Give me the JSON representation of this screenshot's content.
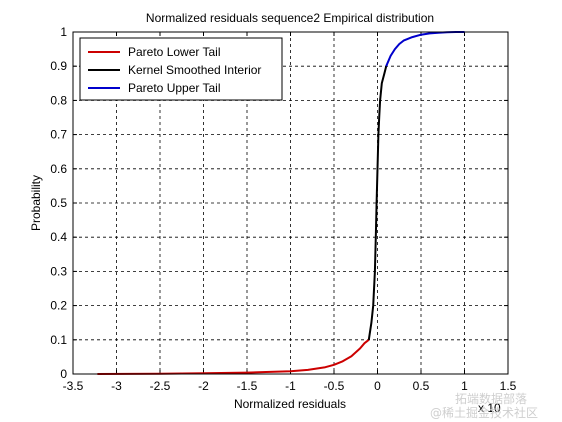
{
  "chart_data": {
    "type": "line",
    "title": "Normalized residuals sequence2 Empirical distribution",
    "xlabel": "Normalized residuals",
    "ylabel": "Probability",
    "xlim": [
      -3.5,
      1.5
    ],
    "ylim": [
      0,
      1
    ],
    "x_ticks": [
      "-3.5",
      "-3",
      "-2.5",
      "-2",
      "-1.5",
      "-1",
      "-0.5",
      "0",
      "0.5",
      "1",
      "1.5"
    ],
    "y_ticks": [
      "0",
      "0.1",
      "0.2",
      "0.3",
      "0.4",
      "0.5",
      "0.6",
      "0.7",
      "0.8",
      "0.9",
      "1"
    ],
    "x_exponent_label": "x 10",
    "grid": true,
    "legend_position": "top-left",
    "series": [
      {
        "name": "Pareto Lower Tail",
        "color": "#cc0000",
        "x": [
          -3.22,
          -2.5,
          -2.0,
          -1.5,
          -1.0,
          -0.8,
          -0.6,
          -0.5,
          -0.4,
          -0.3,
          -0.2,
          -0.15,
          -0.1
        ],
        "y": [
          0.0,
          0.001,
          0.002,
          0.004,
          0.008,
          0.012,
          0.02,
          0.027,
          0.037,
          0.052,
          0.075,
          0.09,
          0.1
        ]
      },
      {
        "name": "Kernel Smoothed Interior",
        "color": "#000000",
        "x": [
          -0.1,
          -0.07,
          -0.05,
          -0.03,
          -0.02,
          -0.01,
          0.0,
          0.01,
          0.02,
          0.03,
          0.05,
          0.08,
          0.1
        ],
        "y": [
          0.1,
          0.15,
          0.2,
          0.3,
          0.4,
          0.5,
          0.6,
          0.7,
          0.75,
          0.8,
          0.85,
          0.88,
          0.9
        ]
      },
      {
        "name": "Pareto Upper Tail",
        "color": "#0000cc",
        "x": [
          0.1,
          0.15,
          0.2,
          0.25,
          0.3,
          0.4,
          0.5,
          0.6,
          0.7,
          0.8,
          0.9,
          1.0
        ],
        "y": [
          0.9,
          0.93,
          0.95,
          0.965,
          0.975,
          0.985,
          0.992,
          0.996,
          0.998,
          0.999,
          1.0,
          1.0
        ]
      }
    ]
  },
  "watermark": {
    "line1": "@稀土掘金技术社区",
    "line2": "拓端数据部落"
  }
}
